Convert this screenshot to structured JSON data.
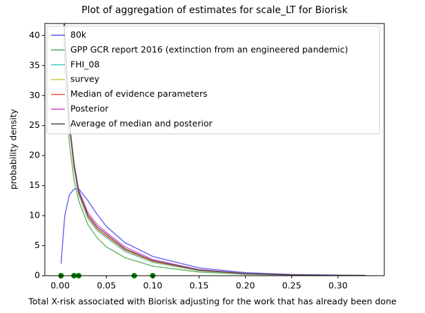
{
  "chart_data": {
    "type": "line",
    "title": "Plot of aggregation of estimates for scale_LT for Biorisk",
    "x_label": "Total X-risk associated with Biorisk adjusting for the work that has already been done",
    "y_label": "probability density",
    "x": [
      0.001,
      0.005,
      0.01,
      0.015,
      0.02,
      0.03,
      0.04,
      0.05,
      0.07,
      0.1,
      0.15,
      0.2,
      0.25,
      0.3,
      0.33
    ],
    "series": [
      {
        "name": "80k",
        "color": "#5555ee",
        "values": [
          2,
          10,
          13.5,
          14.4,
          14.5,
          12.5,
          10.2,
          8.2,
          5.5,
          3.2,
          1.3,
          0.5,
          0.2,
          0.1,
          0.05
        ]
      },
      {
        "name": "GPP GCR report 2016 (extinction from an engineered pandemic)",
        "color": "#55aa55",
        "values": [
          60,
          35,
          22,
          16,
          12.5,
          8.5,
          6.3,
          4.8,
          3.0,
          1.6,
          0.6,
          0.25,
          0.1,
          0.05,
          0.03
        ]
      },
      {
        "name": "FHI_08",
        "color": "#44cccc",
        "values": [
          65,
          40,
          25,
          18,
          13.5,
          9.5,
          7.5,
          6.3,
          4.0,
          2.2,
          0.8,
          0.3,
          0.12,
          0.05,
          0.03
        ]
      },
      {
        "name": "survey",
        "color": "#cccc44",
        "values": [
          65,
          40,
          25,
          18.2,
          13.7,
          9.7,
          7.7,
          6.5,
          4.2,
          2.3,
          0.85,
          0.32,
          0.13,
          0.05,
          0.03
        ]
      },
      {
        "name": "Median of evidence parameters",
        "color": "#ee5544",
        "values": [
          65,
          40,
          25,
          18.3,
          13.8,
          9.8,
          7.8,
          6.6,
          4.3,
          2.4,
          0.9,
          0.33,
          0.13,
          0.05,
          0.03
        ]
      },
      {
        "name": "Posterior",
        "color": "#cc44cc",
        "values": [
          65,
          40,
          25.5,
          18.8,
          14.3,
          10.5,
          8.5,
          7.2,
          4.8,
          2.7,
          1.0,
          0.38,
          0.15,
          0.06,
          0.03
        ]
      },
      {
        "name": "Average of median and posterior",
        "color": "#444444",
        "values": [
          65,
          40,
          25.2,
          18.5,
          14.0,
          10.1,
          8.1,
          6.9,
          4.5,
          2.5,
          0.95,
          0.35,
          0.14,
          0.05,
          0.03
        ]
      }
    ],
    "evidence_points": {
      "color": "#008000",
      "x": [
        0.001,
        0.015,
        0.02,
        0.08,
        0.1
      ],
      "values": [
        0,
        0,
        0,
        0,
        0
      ]
    },
    "xlim": [
      -0.0165,
      0.35
    ],
    "ylim": [
      0,
      42
    ],
    "xticks": [
      {
        "value": 0,
        "label": "0.00"
      },
      {
        "value": 0.05,
        "label": "0.05"
      },
      {
        "value": 0.1,
        "label": "0.10"
      },
      {
        "value": 0.15,
        "label": "0.15"
      },
      {
        "value": 0.2,
        "label": "0.20"
      },
      {
        "value": 0.25,
        "label": "0.25"
      },
      {
        "value": 0.3,
        "label": "0.30"
      }
    ],
    "yticks": [
      0,
      5,
      10,
      15,
      20,
      25,
      30,
      35,
      40
    ],
    "grid": false,
    "legend": "upper left"
  }
}
